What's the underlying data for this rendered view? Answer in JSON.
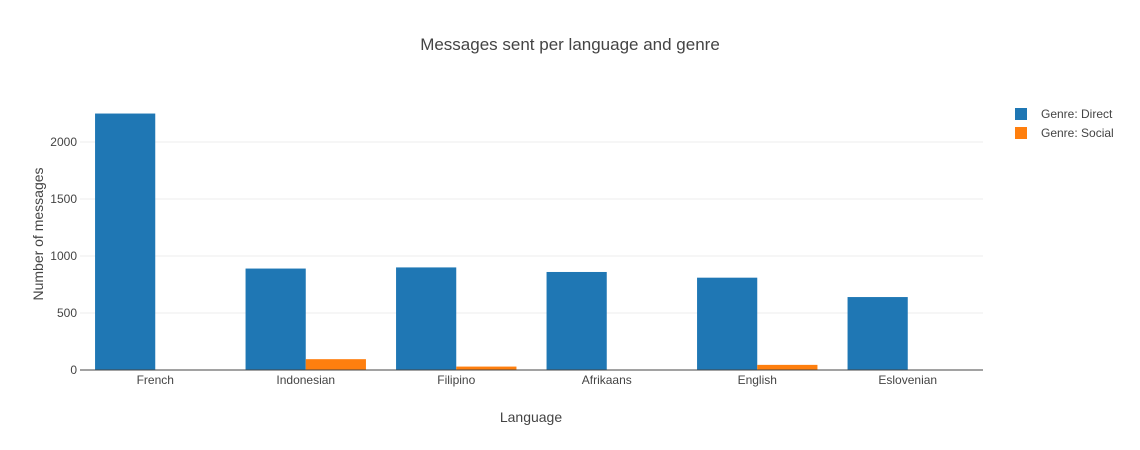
{
  "chart_data": {
    "type": "bar",
    "title": "Messages sent per language and genre",
    "xlabel": "Language",
    "ylabel": "Number of messages",
    "categories": [
      "French",
      "Indonesian",
      "Filipino",
      "Afrikaans",
      "English",
      "Eslovenian"
    ],
    "series": [
      {
        "name": "Genre: Direct",
        "color": "#1f77b4",
        "values": [
          2250,
          890,
          900,
          860,
          810,
          640
        ]
      },
      {
        "name": "Genre: Social",
        "color": "#ff7f0e",
        "values": [
          0,
          95,
          30,
          0,
          45,
          0
        ]
      }
    ],
    "ylim": [
      0,
      2360
    ],
    "yticks": [
      0,
      500,
      1000,
      1500,
      2000
    ],
    "grid": true,
    "legend_position": "top-right"
  }
}
